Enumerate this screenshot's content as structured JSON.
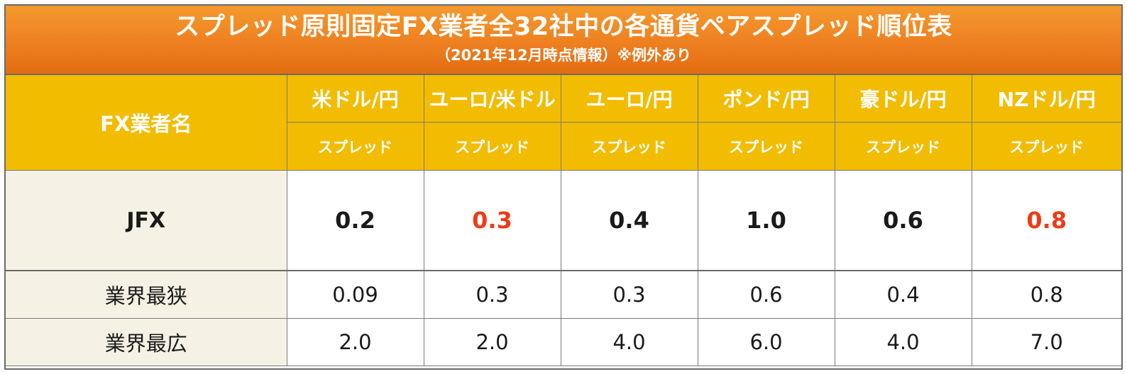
{
  "title": "スプレッド原則固定FX業者全32社中の各通貨ペアスプレッド順位表",
  "subtitle": "（2021年12月時点情報）※例外あり",
  "header": {
    "company_label": "FX業者名",
    "spread_label": "スプレッド",
    "pairs": [
      "米ドル/円",
      "ユーロ/米ドル",
      "ユーロ/円",
      "ポンド/円",
      "豪ドル/円",
      "NZドル/円"
    ]
  },
  "rows": {
    "jfx": {
      "name": "JFX",
      "values": [
        "0.2",
        "0.3",
        "0.4",
        "1.0",
        "0.6",
        "0.8"
      ],
      "highlight_color": "#f03a17",
      "highlighted_pairs": [
        "ユーロ/米ドル",
        "NZドル/円"
      ]
    },
    "narrowest": {
      "name": "業界最狭",
      "values": [
        "0.09",
        "0.3",
        "0.3",
        "0.6",
        "0.4",
        "0.8"
      ]
    },
    "widest": {
      "name": "業界最広",
      "values": [
        "2.0",
        "2.0",
        "4.0",
        "6.0",
        "4.0",
        "7.0"
      ]
    }
  },
  "colors": {
    "title_band": "#ee8020",
    "header_fill": "#f2bc00",
    "name_cell_fill": "#f5f1e4"
  }
}
